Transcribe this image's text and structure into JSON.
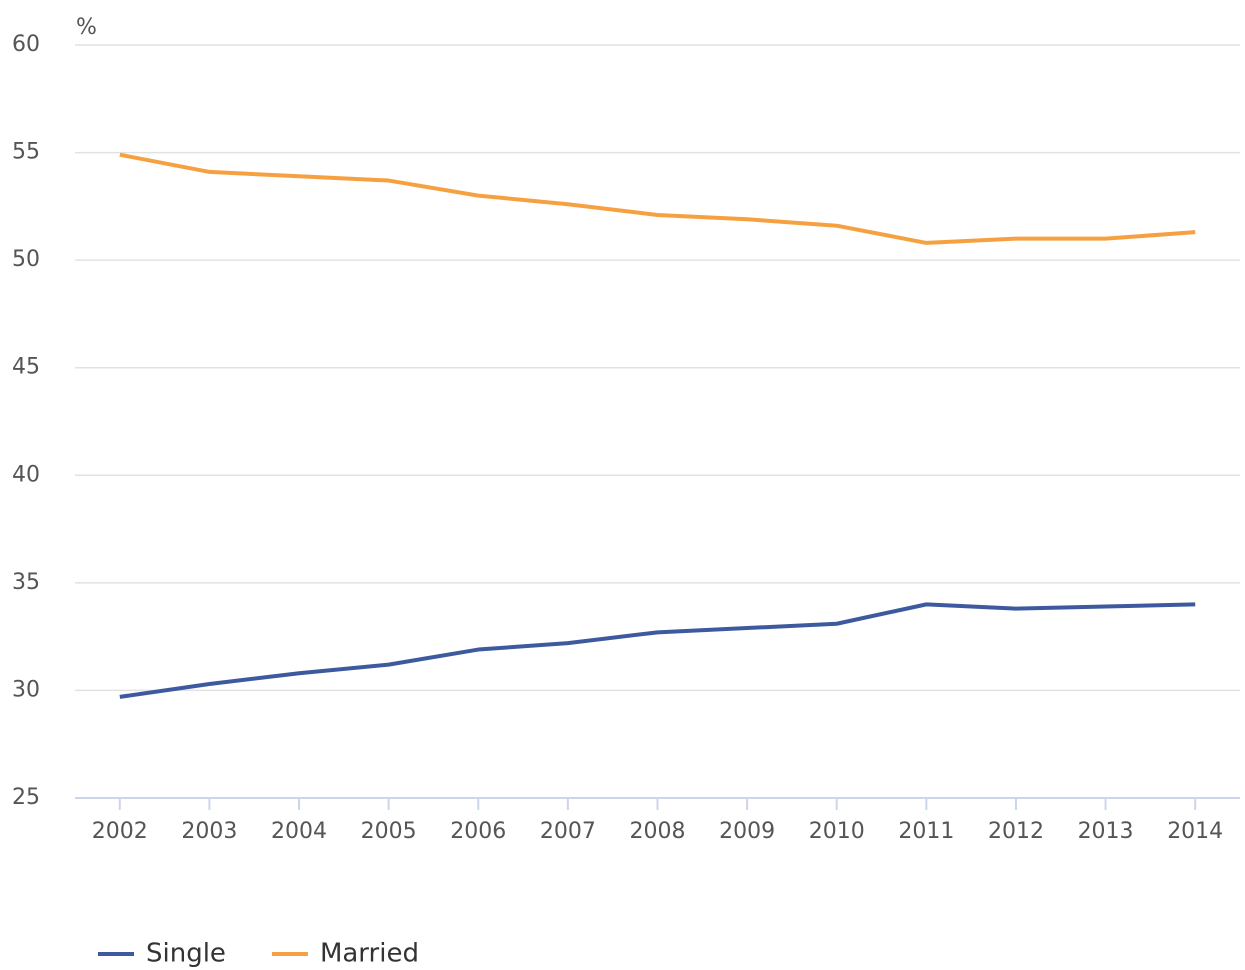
{
  "chart_data": {
    "type": "line",
    "y_axis_label": "%",
    "categories": [
      "2002",
      "2003",
      "2004",
      "2005",
      "2006",
      "2007",
      "2008",
      "2009",
      "2010",
      "2011",
      "2012",
      "2013",
      "2014"
    ],
    "series": [
      {
        "name": "Single",
        "color": "#3d5a9e",
        "values": [
          29.7,
          30.3,
          30.8,
          31.2,
          31.9,
          32.2,
          32.7,
          32.9,
          33.1,
          34.0,
          33.8,
          33.9,
          34.0
        ]
      },
      {
        "name": "Married",
        "color": "#f5a142",
        "values": [
          54.9,
          54.1,
          53.9,
          53.7,
          53.0,
          52.6,
          52.1,
          51.9,
          51.6,
          50.8,
          51.0,
          51.0,
          51.3
        ]
      }
    ],
    "ylim": [
      25,
      60
    ],
    "yticks": [
      25,
      30,
      35,
      40,
      45,
      50,
      55,
      60
    ],
    "grid": true,
    "legend": "bottom-left"
  }
}
